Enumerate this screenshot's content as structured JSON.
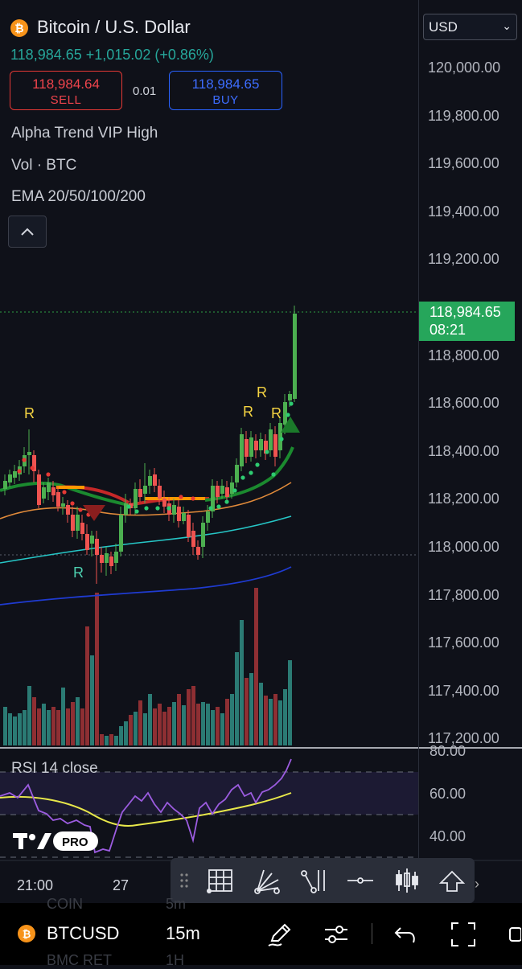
{
  "header": {
    "coin_symbol": "₿",
    "title": "Bitcoin / U.S. Dollar",
    "price_line": "118,984.65 +1,015.02 (+0.86%)",
    "sell_price": "118,984.64",
    "sell_label": "SELL",
    "spread": "0.01",
    "buy_price": "118,984.65",
    "buy_label": "BUY"
  },
  "indicators": [
    "Alpha Trend VIP High",
    "Vol · BTC",
    "EMA 20/50/100/200"
  ],
  "collapse_icon": "chevron-up-icon",
  "price_axis": {
    "currency": "USD",
    "ticks": [
      "120,000.00",
      "119,800.00",
      "119,600.00",
      "119,400.00",
      "119,200.00",
      "119,000.00",
      "118,800.00",
      "118,600.00",
      "118,400.00",
      "118,200.00",
      "118,000.00",
      "117,800.00",
      "117,600.00",
      "117,400.00",
      "117,200.00"
    ],
    "last_price": "118,984.65",
    "countdown": "08:21"
  },
  "rsi": {
    "label": "RSI 14 close",
    "ticks": [
      "80.00",
      "60.00",
      "40.00"
    ]
  },
  "logo_text": "PRO",
  "time_axis": [
    "21:00",
    "27"
  ],
  "signals": {
    "r": "R"
  },
  "draw_tools": [
    "drag-handle-icon",
    "grid-icon",
    "fib-fan-icon",
    "trend-tool-icon",
    "horizontal-line-icon",
    "candles-icon",
    "arrow-up-icon",
    "chevron-right-icon"
  ],
  "bottom_bar": {
    "ghost_left": "COIN",
    "ghost_right": "5m",
    "ghost_left2": "BMC  RET",
    "ghost_right2": "1H",
    "symbol": "BTCUSD",
    "timeframe": "15m",
    "icons": [
      "pencil-icon",
      "settings-sliders-icon",
      "undo-icon",
      "fullscreen-icon"
    ]
  },
  "colors": {
    "up": "#26a69a",
    "candle_up": "#4caf50",
    "candle_down": "#ef5350",
    "sell": "#e53935",
    "buy": "#2962ff",
    "last_price_tag": "#26a65b",
    "signal_r": "#f5d442",
    "signal_r_low": "#4dd0b0",
    "rsi_line": "#9c5ce0",
    "rsi_ma": "#e8e84a"
  }
}
